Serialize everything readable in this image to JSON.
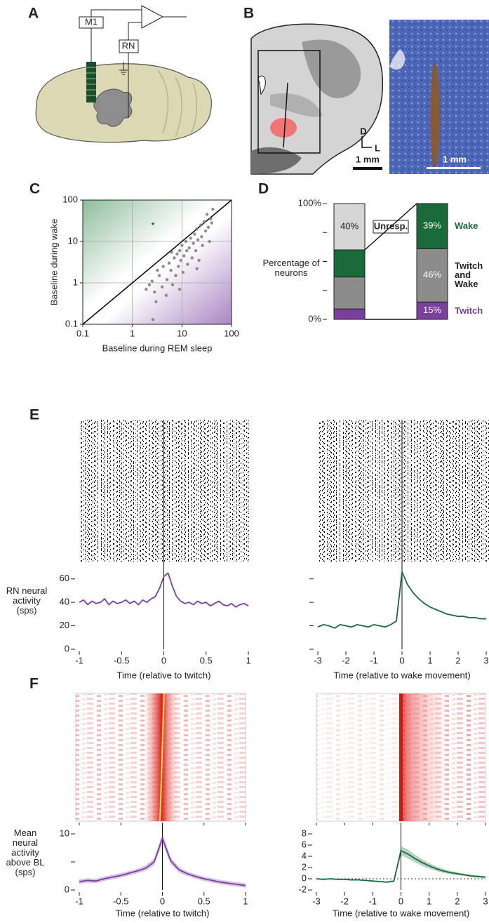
{
  "panel_labels": [
    "A",
    "B",
    "C",
    "D",
    "E",
    "F"
  ],
  "panel_a": {
    "labels": [
      "M1",
      "RN"
    ]
  },
  "panel_b": {
    "axes": [
      "D",
      "L"
    ],
    "scale_bars": [
      "1 mm",
      "1 mm"
    ]
  },
  "chart_data": [
    {
      "type": "scatter",
      "xlabel": "Baseline during REM sleep",
      "ylabel": "Baseline during wake",
      "annotation": "*",
      "log_scale": true,
      "grid": true,
      "diagonal": true,
      "color": "#7a7a7a",
      "xlim": [
        0.1,
        100
      ],
      "ylim": [
        0.1,
        100
      ],
      "xticks": [
        0.1,
        1,
        10,
        100
      ],
      "yticks": [
        0.1,
        1,
        10,
        100
      ],
      "x": [
        1.9,
        2.2,
        2.5,
        2.6,
        2.8,
        3,
        3.2,
        3.5,
        4,
        4.2,
        4.8,
        5,
        5.5,
        6,
        6.2,
        6.5,
        7,
        7.5,
        8,
        8.5,
        9,
        9,
        9.5,
        10,
        10.5,
        11,
        12,
        12.5,
        13,
        14,
        15,
        16,
        17,
        18,
        19,
        20,
        20,
        21,
        22,
        24,
        25,
        26,
        28,
        30,
        32,
        34,
        36,
        38,
        40,
        42
      ],
      "values": [
        0.7,
        0.9,
        1.1,
        0.13,
        0.6,
        0.35,
        2,
        1.5,
        0.8,
        2.5,
        0.5,
        1.2,
        3,
        2,
        5.5,
        0.9,
        4,
        1.5,
        5,
        2.5,
        6,
        0.7,
        3.5,
        8,
        1.8,
        4.5,
        10,
        6,
        2.8,
        7,
        12,
        4,
        9,
        15,
        6,
        20,
        2.2,
        11,
        3.5,
        25,
        13,
        8,
        30,
        18,
        45,
        22,
        10,
        35,
        28,
        60
      ]
    },
    {
      "type": "stacked_bar",
      "ylabel": "Percentage of neurons",
      "categories": [
        null,
        null
      ],
      "ylim": [
        0,
        100
      ],
      "yticks": [
        {
          "value": 0,
          "label": "0%"
        },
        {
          "value": 100,
          "label": "100%"
        }
      ],
      "minor_yticks": [
        25,
        50,
        75
      ],
      "series": [
        {
          "name": "Twitch",
          "color": "#7b3f9e",
          "values": [
            9,
            15
          ],
          "value_labels": [
            null,
            "15%"
          ]
        },
        {
          "name": "Twitch and Wake",
          "color": "#8c8c8c",
          "values": [
            27.6,
            46
          ],
          "value_labels": [
            null,
            "46%"
          ]
        },
        {
          "name": "Wake",
          "color": "#1b6b3a",
          "values": [
            23.4,
            39
          ],
          "value_labels": [
            null,
            "39%"
          ]
        },
        {
          "name": "Unresp.",
          "color": "#d6d6d6",
          "values": [
            40,
            null
          ],
          "value_labels": [
            "40%",
            null
          ]
        }
      ]
    },
    {
      "type": "line",
      "xlabel": "Time (relative to twitch)",
      "ylabel": "RN neural activity (sps)",
      "xlim": [
        -1,
        1
      ],
      "ylim": [
        0,
        70
      ],
      "xticks": [
        -1,
        -0.5,
        0,
        0.5,
        1
      ],
      "yticks": [
        0,
        20,
        40,
        60
      ],
      "vline": 0,
      "x": [
        -1,
        -0.95,
        -0.9,
        -0.85,
        -0.8,
        -0.75,
        -0.7,
        -0.65,
        -0.6,
        -0.55,
        -0.5,
        -0.45,
        -0.4,
        -0.35,
        -0.3,
        -0.25,
        -0.2,
        -0.15,
        -0.1,
        -0.05,
        0,
        0.05,
        0.1,
        0.15,
        0.2,
        0.25,
        0.3,
        0.35,
        0.4,
        0.45,
        0.5,
        0.55,
        0.6,
        0.65,
        0.7,
        0.75,
        0.8,
        0.85,
        0.9,
        0.95,
        1
      ],
      "series": [
        {
          "color": "#7b3f9e",
          "values": [
            40,
            42,
            38,
            41,
            39,
            40,
            43,
            38,
            41,
            39,
            40,
            42,
            39,
            41,
            38,
            42,
            40,
            43,
            45,
            52,
            62,
            65,
            54,
            45,
            41,
            39,
            40,
            38,
            41,
            39,
            40,
            37,
            39,
            41,
            38,
            37,
            39,
            36,
            38,
            39,
            37
          ]
        }
      ]
    },
    {
      "type": "line",
      "xlabel": "Time (relative to wake movement)",
      "ytick_labels": false,
      "xlim": [
        -3,
        3
      ],
      "ylim": [
        0,
        70
      ],
      "xticks": [
        -3,
        -2,
        -1,
        0,
        1,
        2,
        3
      ],
      "yticks": [
        0,
        20,
        40,
        60
      ],
      "vline": 0,
      "x": [
        -3,
        -2.8,
        -2.6,
        -2.4,
        -2.2,
        -2,
        -1.8,
        -1.6,
        -1.4,
        -1.2,
        -1,
        -0.8,
        -0.6,
        -0.4,
        -0.2,
        0,
        0.2,
        0.4,
        0.6,
        0.8,
        1,
        1.2,
        1.4,
        1.6,
        1.8,
        2,
        2.2,
        2.4,
        2.6,
        2.8,
        3
      ],
      "series": [
        {
          "color": "#1b6b3a",
          "values": [
            19,
            21,
            20,
            18,
            21,
            20,
            19,
            21,
            20,
            19,
            21,
            20,
            19,
            21,
            24,
            66,
            55,
            48,
            43,
            39,
            36,
            34,
            32,
            30,
            29,
            28,
            28,
            27,
            27,
            26,
            26
          ]
        }
      ]
    },
    {
      "type": "line",
      "xlabel": "Time (relative to twitch)",
      "ylabel": "Mean neural activity above BL (sps)",
      "xlim": [
        -1,
        1
      ],
      "ylim": [
        0,
        10
      ],
      "xticks": [
        -1,
        -0.5,
        0,
        0.5,
        1
      ],
      "yticks": [
        0,
        10
      ],
      "minor_yticks": [
        5
      ],
      "vline": 0,
      "x": [
        -1,
        -0.9,
        -0.8,
        -0.7,
        -0.6,
        -0.5,
        -0.4,
        -0.3,
        -0.2,
        -0.1,
        0,
        0.1,
        0.2,
        0.3,
        0.4,
        0.5,
        0.6,
        0.7,
        0.8,
        0.9,
        1
      ],
      "series": [
        {
          "color": "#7b3f9e",
          "values": [
            1.5,
            1.7,
            1.6,
            2.0,
            2.3,
            2.6,
            3.0,
            3.4,
            3.9,
            5.0,
            9.2,
            5.2,
            3.6,
            2.9,
            2.4,
            2.0,
            1.7,
            1.4,
            1.2,
            1.0,
            0.8
          ],
          "errors": [
            0.4,
            0.4,
            0.4,
            0.4,
            0.4,
            0.4,
            0.4,
            0.4,
            0.5,
            0.6,
            0.9,
            0.6,
            0.5,
            0.4,
            0.4,
            0.4,
            0.4,
            0.4,
            0.4,
            0.4,
            0.4
          ]
        }
      ]
    },
    {
      "type": "line",
      "xlabel": "Time (relative to wake movement)",
      "xlim": [
        -3,
        3
      ],
      "ylim": [
        -2,
        8
      ],
      "xticks": [
        -3,
        -2,
        -1,
        0,
        1,
        2,
        3
      ],
      "yticks": [
        -2,
        0,
        2,
        4,
        6,
        8
      ],
      "vline": 0,
      "hline": 0,
      "x": [
        -3,
        -2.75,
        -2.5,
        -2.25,
        -2,
        -1.75,
        -1.5,
        -1.25,
        -1,
        -0.75,
        -0.5,
        -0.25,
        0,
        0.25,
        0.5,
        0.75,
        1,
        1.25,
        1.5,
        1.75,
        2,
        2.25,
        2.5,
        2.75,
        3
      ],
      "series": [
        {
          "color": "#1b6b3a",
          "values": [
            0,
            -0.1,
            0,
            -0.1,
            -0.1,
            -0.2,
            -0.2,
            -0.3,
            -0.4,
            -0.5,
            -0.6,
            -0.4,
            5,
            4.4,
            3.6,
            2.9,
            2.3,
            1.8,
            1.4,
            1.1,
            0.9,
            0.7,
            0.5,
            0.4,
            0.3
          ],
          "errors": [
            0.1,
            0.1,
            0.1,
            0.1,
            0.1,
            0.1,
            0.1,
            0.1,
            0.1,
            0.1,
            0.1,
            0.1,
            0.8,
            0.8,
            0.7,
            0.6,
            0.5,
            0.4,
            0.35,
            0.3,
            0.25,
            0.2,
            0.2,
            0.2,
            0.2
          ]
        }
      ]
    }
  ]
}
